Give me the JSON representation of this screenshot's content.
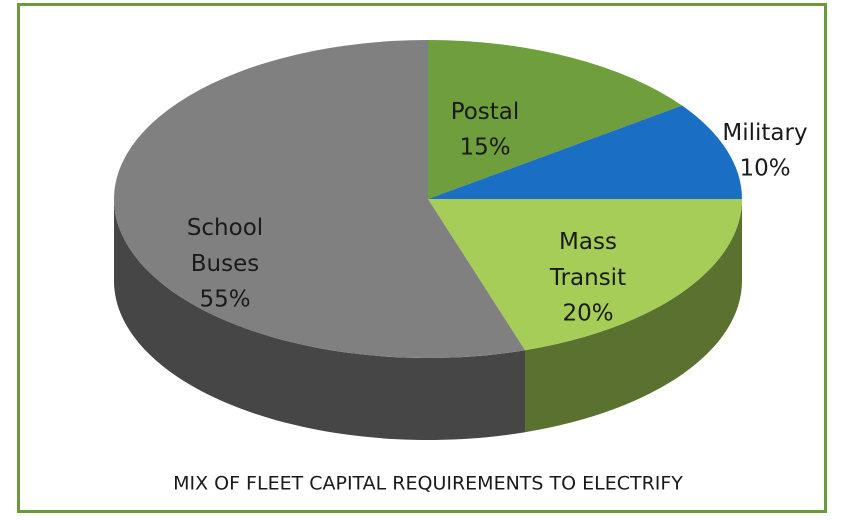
{
  "chart_data": {
    "type": "pie",
    "title": "MIX OF FLEET CAPITAL REQUIREMENTS TO ELECTRIFY",
    "categories": [
      "Postal",
      "Military",
      "Mass Transit",
      "School Buses"
    ],
    "values": [
      15,
      10,
      20,
      55
    ],
    "value_labels": [
      "15%",
      "10%",
      "20%",
      "55%"
    ],
    "colors": [
      "#6f9e3c",
      "#1a6fc4",
      "#a6cd58",
      "#808080"
    ]
  }
}
